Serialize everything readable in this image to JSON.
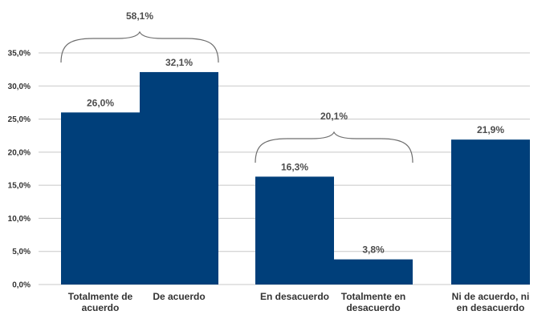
{
  "chart_data": {
    "type": "bar",
    "categories": [
      [
        "Totalmente de",
        "acuerdo"
      ],
      [
        "De acuerdo"
      ],
      [
        "En desacuerdo"
      ],
      [
        "Totalmente en",
        "desacuerdo"
      ],
      [
        "Ni de acuerdo, ni",
        "en desacuerdo"
      ]
    ],
    "values": [
      26.0,
      32.1,
      16.3,
      3.8,
      21.9
    ],
    "value_labels": [
      "26,0%",
      "32,1%",
      "16,3%",
      "3,8%",
      "21,9%"
    ],
    "ylim": [
      0,
      35
    ],
    "yticks": [
      0,
      5,
      10,
      15,
      20,
      25,
      30,
      35
    ],
    "ytick_labels": [
      "0,0%",
      "5,0%",
      "10,0%",
      "15,0%",
      "20,0%",
      "25,0%",
      "30,0%",
      "35,0%"
    ],
    "grid": true,
    "bar_color": "#003f7a",
    "groups": [
      {
        "label": "58,1%",
        "from": 0,
        "to": 1
      },
      {
        "label": "20,1%",
        "from": 2,
        "to": 3
      }
    ]
  }
}
